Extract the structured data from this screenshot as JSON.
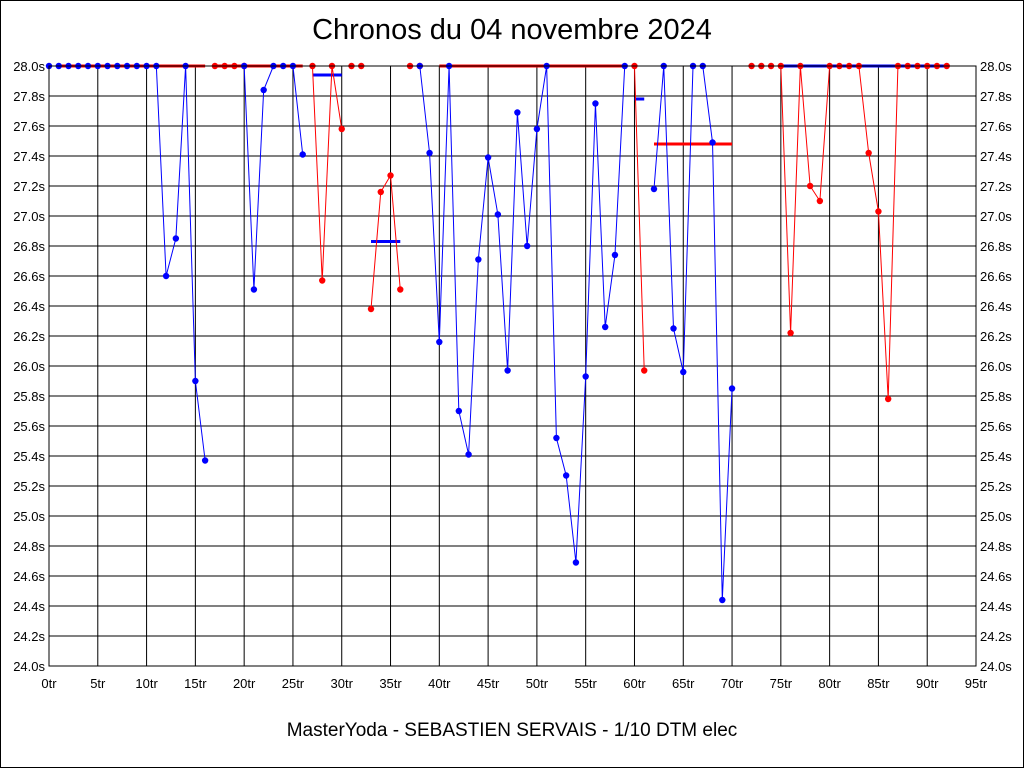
{
  "chart_data": {
    "type": "line",
    "title": "Chronos du 04 novembre 2024",
    "subtitle": "MasterYoda - SEBASTIEN SERVAIS - 1/10 DTM elec",
    "xlabel": "",
    "ylabel": "",
    "xlim": [
      0,
      95
    ],
    "ylim": [
      24.0,
      28.0
    ],
    "grid": true,
    "x_ticks": [
      0,
      5,
      10,
      15,
      20,
      25,
      30,
      35,
      40,
      45,
      50,
      55,
      60,
      65,
      70,
      75,
      80,
      85,
      90,
      95
    ],
    "x_tick_suffix": "tr",
    "y_ticks": [
      24.0,
      24.2,
      24.4,
      24.6,
      24.8,
      25.0,
      25.2,
      25.4,
      25.6,
      25.8,
      26.0,
      26.2,
      26.4,
      26.6,
      26.8,
      27.0,
      27.2,
      27.4,
      27.6,
      27.8,
      28.0
    ],
    "y_tick_suffix": "s",
    "colors": {
      "blue": "#0000ff",
      "red": "#ff0000",
      "grid": "#000000"
    },
    "segments": [
      {
        "color": "blue",
        "x": [
          0,
          1,
          2,
          3,
          4,
          5,
          6,
          7,
          8,
          9,
          10,
          11,
          12,
          13,
          14,
          15,
          16
        ],
        "y": [
          28.0,
          28.0,
          28.0,
          28.0,
          28.0,
          28.0,
          28.0,
          28.0,
          28.0,
          28.0,
          28.0,
          28.0,
          26.6,
          26.85,
          28.0,
          25.9,
          25.37
        ]
      },
      {
        "color": "red",
        "x": [
          17,
          18,
          19,
          20
        ],
        "y": [
          28.0,
          28.0,
          28.0,
          28.0
        ]
      },
      {
        "color": "blue",
        "x": [
          20,
          21,
          22,
          23,
          24,
          25,
          26
        ],
        "y": [
          28.0,
          26.51,
          27.84,
          28.0,
          28.0,
          28.0,
          27.41
        ]
      },
      {
        "color": "red",
        "x": [
          27,
          28,
          29,
          30
        ],
        "y": [
          28.0,
          26.57,
          28.0,
          27.58
        ]
      },
      {
        "color": "red",
        "x": [
          31,
          32
        ],
        "y": [
          28.0,
          28.0
        ]
      },
      {
        "color": "red",
        "x": [
          33,
          34,
          35,
          36
        ],
        "y": [
          26.38,
          27.16,
          27.27,
          26.51
        ]
      },
      {
        "color": "red",
        "x": [
          37,
          38
        ],
        "y": [
          28.0,
          28.0
        ]
      },
      {
        "color": "blue",
        "x": [
          38,
          39,
          40,
          41,
          42,
          43,
          44,
          45,
          46,
          47,
          48,
          49,
          50,
          51,
          52,
          53,
          54,
          55,
          56,
          57,
          58,
          59
        ],
        "y": [
          28.0,
          27.42,
          26.16,
          28.0,
          25.7,
          25.41,
          26.71,
          27.39,
          27.01,
          25.97,
          27.69,
          26.8,
          27.58,
          28.0,
          25.52,
          25.27,
          24.69,
          25.93,
          27.75,
          26.26,
          26.74,
          28.0
        ]
      },
      {
        "color": "red",
        "x": [
          60,
          61
        ],
        "y": [
          28.0,
          25.97
        ]
      },
      {
        "color": "blue",
        "x": [
          62,
          63,
          64,
          65,
          66,
          67,
          68,
          69,
          70
        ],
        "y": [
          27.18,
          28.0,
          26.25,
          25.96,
          28.0,
          28.0,
          27.49,
          24.44,
          25.85
        ]
      },
      {
        "color": "red",
        "x": [
          72,
          73,
          74,
          75,
          76,
          77,
          78,
          79,
          80,
          81,
          82,
          83,
          84,
          85,
          86,
          87,
          88,
          89,
          90,
          91,
          92
        ],
        "y": [
          28.0,
          28.0,
          28.0,
          28.0,
          26.22,
          28.0,
          27.2,
          27.1,
          28.0,
          28.0,
          28.0,
          28.0,
          27.42,
          27.03,
          25.78,
          28.0,
          28.0,
          28.0,
          28.0,
          28.0,
          28.0
        ]
      }
    ],
    "average_lines": [
      {
        "color": "red",
        "x": [
          1,
          16
        ],
        "y": 28.0
      },
      {
        "color": "red",
        "x": [
          17,
          26
        ],
        "y": 28.0
      },
      {
        "color": "blue",
        "x": [
          27,
          30
        ],
        "y": 27.94
      },
      {
        "color": "blue",
        "x": [
          33,
          36
        ],
        "y": 26.83
      },
      {
        "color": "red",
        "x": [
          40,
          59
        ],
        "y": 28.0
      },
      {
        "color": "blue",
        "x": [
          60,
          61
        ],
        "y": 27.78
      },
      {
        "color": "red",
        "x": [
          62,
          70
        ],
        "y": 27.48
      },
      {
        "color": "blue",
        "x": [
          75,
          92
        ],
        "y": 28.0
      }
    ]
  }
}
